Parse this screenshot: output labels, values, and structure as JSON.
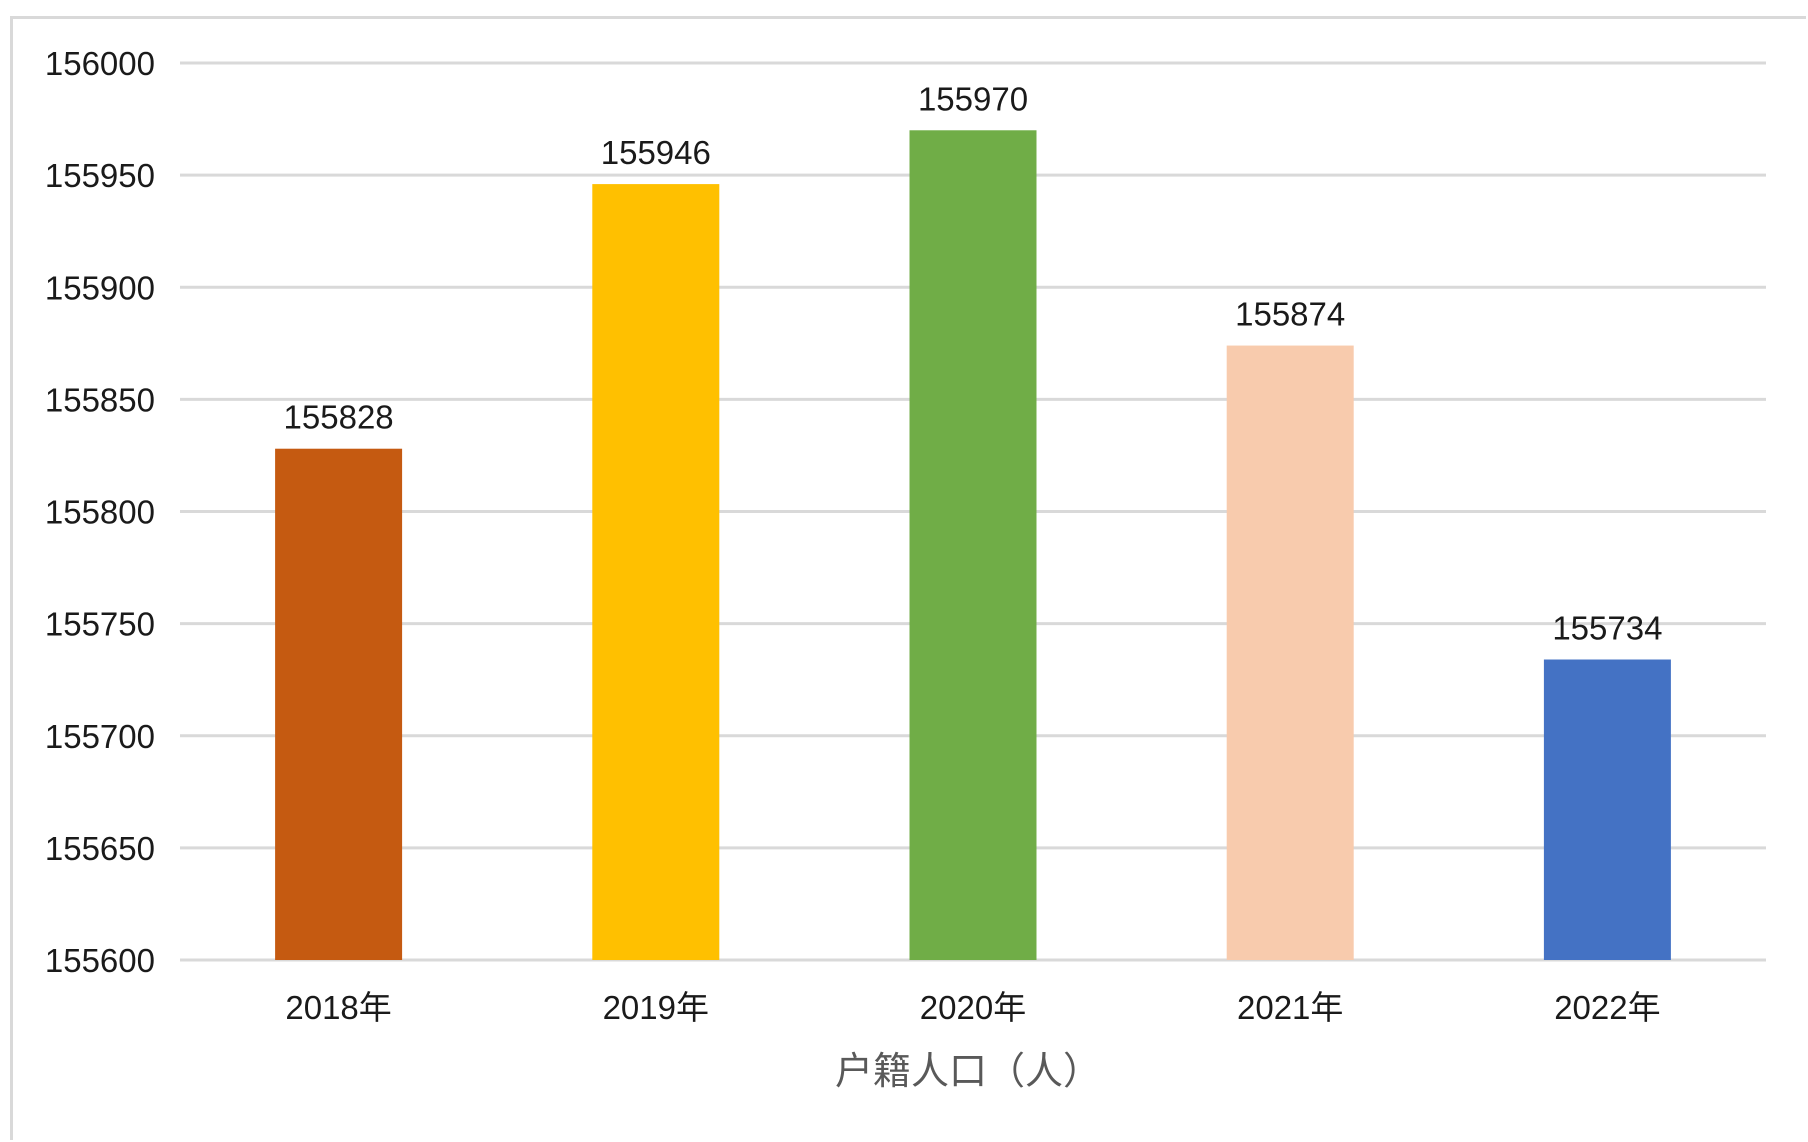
{
  "chart_data": {
    "type": "bar",
    "categories": [
      "2018年",
      "2019年",
      "2020年",
      "2021年",
      "2022年"
    ],
    "values": [
      155828,
      155946,
      155970,
      155874,
      155734
    ],
    "data_labels": [
      "155828",
      "155946",
      "155970",
      "155874",
      "155734"
    ],
    "xlabel": "户籍人口（人）",
    "ylabel": "",
    "ylim": [
      155600,
      156000
    ],
    "yticks": [
      "155600",
      "155650",
      "155700",
      "155750",
      "155800",
      "155850",
      "155900",
      "155950",
      "156000"
    ],
    "grid": true,
    "legend": "none",
    "colors": [
      "#c55a11",
      "#ffc000",
      "#70ad47",
      "#f8cbad",
      "#4472c4"
    ]
  }
}
